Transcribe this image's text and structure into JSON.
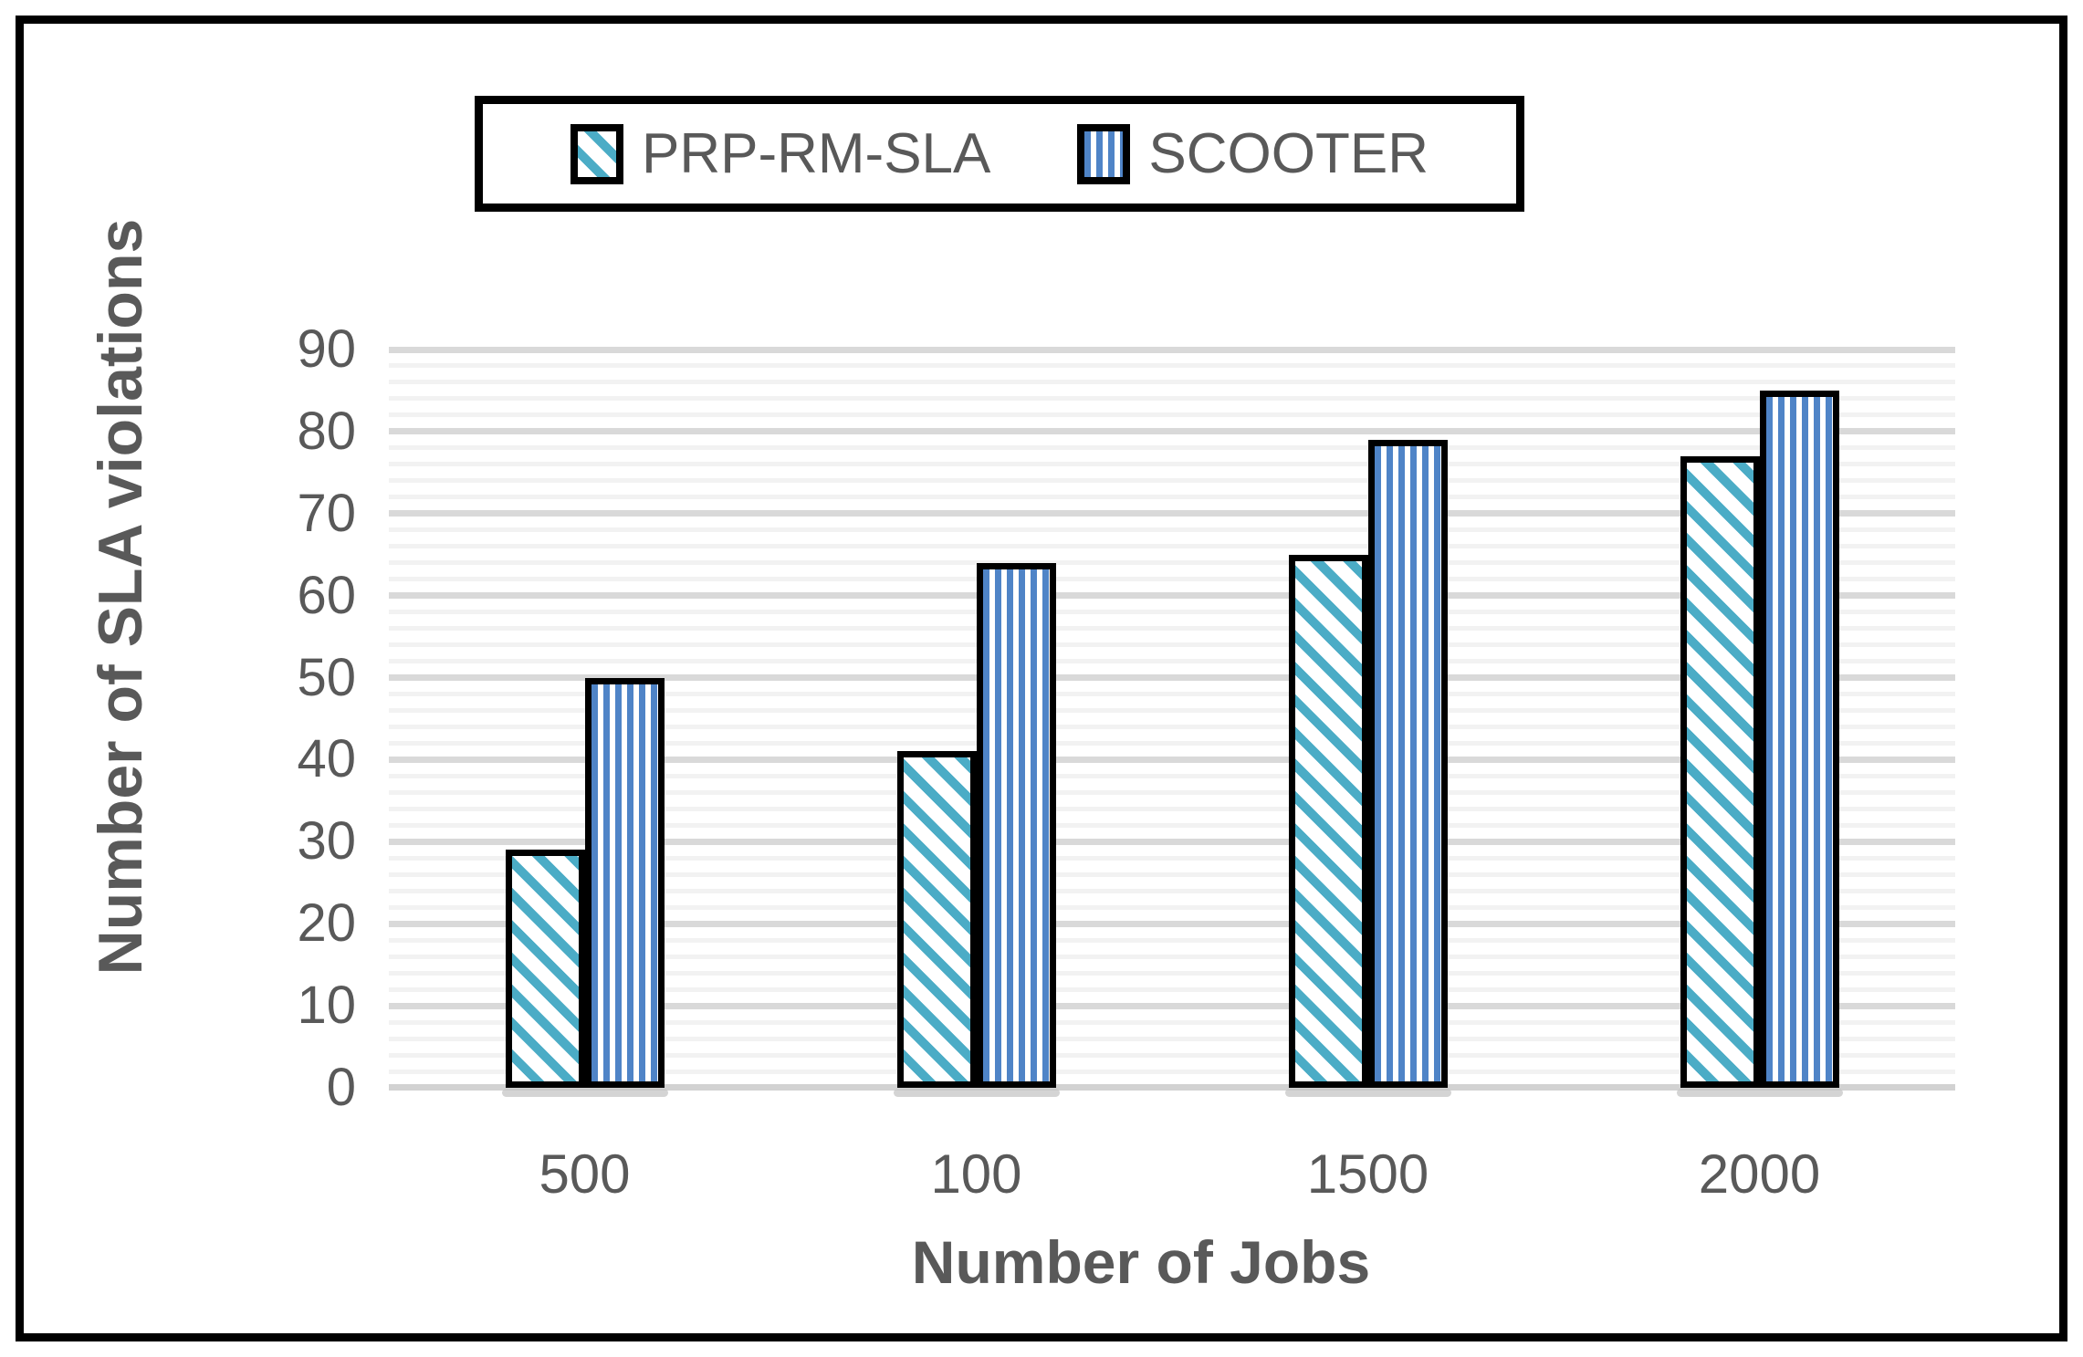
{
  "chart_data": {
    "type": "bar",
    "title": "",
    "categories": [
      "500",
      "100",
      "1500",
      "2000"
    ],
    "series": [
      {
        "name": "PRP-RM-SLA",
        "pattern": "diagonal-hatch",
        "color": "#4bacc6",
        "values": [
          29,
          41,
          65,
          77
        ]
      },
      {
        "name": "SCOOTER",
        "pattern": "vertical-stripes",
        "color": "#4f84c7",
        "values": [
          50,
          64,
          79,
          85
        ]
      }
    ],
    "xlabel": "Number of Jobs",
    "ylabel": "Number of SLA violations",
    "ylim": [
      0,
      90
    ],
    "y_major_step": 10,
    "y_minor_step": 2,
    "y_ticks": [
      0,
      10,
      20,
      30,
      40,
      50,
      60,
      70,
      80,
      90
    ],
    "grid": "horizontal, major and minor lines",
    "legend_position": "top-center",
    "bar_border_color": "#000000",
    "text_color": "#595959",
    "major_grid_color": "#d9d9d9",
    "minor_grid_color": "#f2f2f2"
  }
}
